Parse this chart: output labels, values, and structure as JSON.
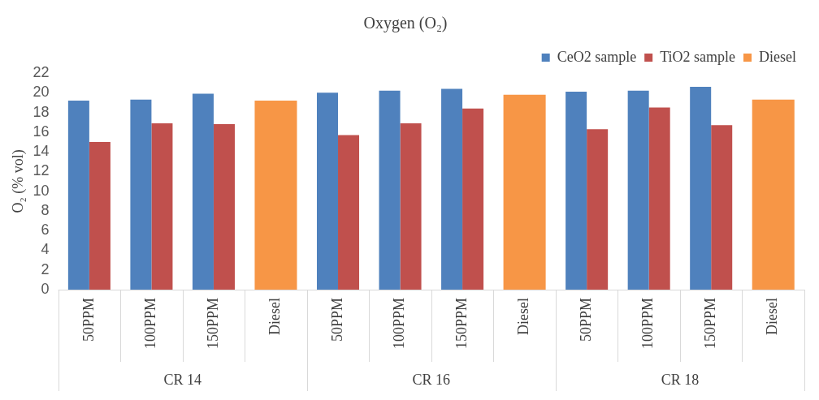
{
  "chart_data": {
    "type": "bar",
    "title": "Oxygen (O₂)",
    "ylabel": "O₂ (% vol)",
    "categories": [
      "50PPM",
      "100PPM",
      "150PPM",
      "Diesel",
      "50PPM",
      "100PPM",
      "150PPM",
      "Diesel",
      "50PPM",
      "100PPM",
      "150PPM",
      "Diesel"
    ],
    "series": [
      {
        "name": "CeO2 sample",
        "color": "#4f81bd",
        "values": [
          19.2,
          19.3,
          19.9,
          null,
          20.0,
          20.2,
          20.4,
          null,
          20.1,
          20.2,
          20.6,
          null
        ]
      },
      {
        "name": "TiO2 sample",
        "color": "#c0504d",
        "values": [
          15.0,
          16.9,
          16.8,
          null,
          15.7,
          16.9,
          18.4,
          null,
          16.3,
          18.5,
          16.7,
          null
        ]
      },
      {
        "name": "Diesel",
        "color": "#f79646",
        "values": [
          null,
          null,
          null,
          19.2,
          null,
          null,
          null,
          19.8,
          null,
          null,
          null,
          19.3
        ]
      }
    ],
    "annotations": [
      "CR 14",
      "CR 16",
      "CR 18"
    ],
    "ylim": [
      0,
      22
    ],
    "yticks": [
      0,
      2,
      4,
      6,
      8,
      10,
      12,
      14,
      16,
      18,
      20,
      22
    ],
    "grid": false,
    "legend": "top right"
  }
}
